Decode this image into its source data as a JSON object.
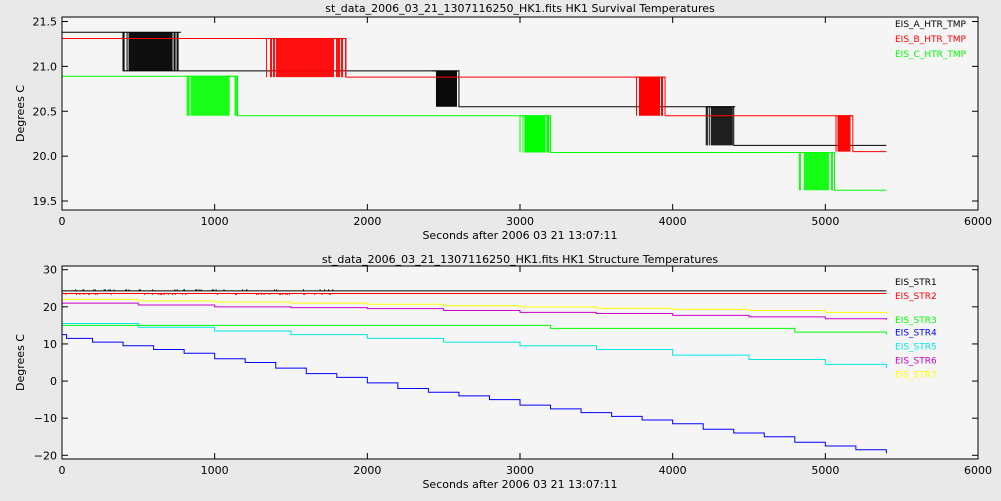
{
  "chart_data": [
    {
      "type": "line",
      "title": "st_data_2006_03_21_1307116250_HK1.fits HK1 Survival Temperatures",
      "xlabel": "Seconds after 2006 03 21 13:07:11",
      "ylabel": "Degrees C",
      "xlim": [
        0,
        6000
      ],
      "ylim": [
        19.4,
        21.55
      ],
      "xticks": [
        0,
        1000,
        2000,
        3000,
        4000,
        5000,
        6000
      ],
      "yticks": [
        19.5,
        20.0,
        20.5,
        21.0,
        21.5
      ],
      "ytick_labels": [
        "19.5",
        "20.0",
        "20.5",
        "21.0",
        "21.5"
      ],
      "legend_position": "top-right",
      "series": [
        {
          "name": "EIS_A_HTR_TMP",
          "color": "#000000",
          "x": [
            0,
            390,
            400,
            800,
            1150,
            2400,
            2600,
            4200,
            4400,
            5400
          ],
          "y": [
            21.38,
            21.38,
            20.95,
            20.95,
            20.95,
            20.95,
            20.55,
            20.55,
            20.12,
            20.12
          ],
          "bursts": [
            {
              "x_start": 400,
              "x_end": 780,
              "y_low": 20.95,
              "y_high": 21.38
            },
            {
              "x_start": 2420,
              "x_end": 2600,
              "y_low": 20.55,
              "y_high": 20.95
            },
            {
              "x_start": 4220,
              "x_end": 4410,
              "y_low": 20.12,
              "y_high": 20.55
            }
          ]
        },
        {
          "name": "EIS_B_HTR_TMP",
          "color": "#ff0000",
          "x": [
            0,
            1340,
            1860,
            3750,
            3950,
            5070,
            5180,
            5400
          ],
          "y": [
            21.31,
            21.31,
            20.88,
            20.88,
            20.45,
            20.45,
            20.05,
            20.05
          ],
          "bursts": [
            {
              "x_start": 1340,
              "x_end": 1860,
              "y_low": 20.88,
              "y_high": 21.31
            },
            {
              "x_start": 3750,
              "x_end": 3950,
              "y_low": 20.45,
              "y_high": 20.88
            },
            {
              "x_start": 5070,
              "x_end": 5180,
              "y_low": 20.05,
              "y_high": 20.45
            }
          ]
        },
        {
          "name": "EIS_C_HTR_TMP",
          "color": "#00ff00",
          "x": [
            0,
            800,
            1150,
            3000,
            3200,
            4830,
            5060,
            5400
          ],
          "y": [
            20.89,
            20.89,
            20.45,
            20.45,
            20.04,
            20.04,
            19.62,
            19.62
          ],
          "bursts": [
            {
              "x_start": 800,
              "x_end": 1150,
              "y_low": 20.45,
              "y_high": 20.89
            },
            {
              "x_start": 3000,
              "x_end": 3190,
              "y_low": 20.04,
              "y_high": 20.45
            },
            {
              "x_start": 4830,
              "x_end": 5060,
              "y_low": 19.62,
              "y_high": 20.04
            }
          ]
        }
      ]
    },
    {
      "type": "line",
      "title": "st_data_2006_03_21_1307116250_HK1.fits HK1 Structure Temperatures",
      "xlabel": "Seconds after 2006 03 21 13:07:11",
      "ylabel": "Degrees C",
      "xlim": [
        0,
        6000
      ],
      "ylim": [
        -21,
        31
      ],
      "xticks": [
        0,
        1000,
        2000,
        3000,
        4000,
        5000,
        6000
      ],
      "yticks": [
        -20,
        -10,
        0,
        10,
        20,
        30
      ],
      "ytick_labels": [
        "−20",
        "−10",
        "0",
        "10",
        "20",
        "30"
      ],
      "legend_position": "right",
      "series": [
        {
          "name": "EIS_STR1",
          "color": "#000000",
          "x": [
            0,
            5400
          ],
          "y": [
            24.3,
            24.3
          ]
        },
        {
          "name": "EIS_STR2",
          "color": "#ff0000",
          "x": [
            0,
            5400
          ],
          "y": [
            23.6,
            23.6
          ]
        },
        {
          "name": "EIS_STR3",
          "color": "#00ff00",
          "x": [
            0,
            2000,
            3200,
            4800,
            5400
          ],
          "y": [
            15.0,
            15.0,
            14.2,
            13.2,
            12.5
          ]
        },
        {
          "name": "EIS_STR4",
          "color": "#0000ff",
          "x": [
            0,
            30,
            200,
            400,
            600,
            800,
            1000,
            1200,
            1400,
            1600,
            1800,
            2000,
            2200,
            2400,
            2600,
            2800,
            3000,
            3200,
            3400,
            3600,
            3800,
            4000,
            4200,
            4400,
            4600,
            4800,
            5000,
            5200,
            5400
          ],
          "y": [
            12.5,
            11.5,
            10.5,
            9.5,
            8.5,
            7.5,
            6.0,
            5.0,
            3.5,
            2.0,
            1.0,
            -0.5,
            -2.0,
            -3.0,
            -4.0,
            -5.0,
            -6.5,
            -7.5,
            -8.5,
            -9.5,
            -10.5,
            -11.5,
            -13.0,
            -14.0,
            -15.0,
            -16.5,
            -17.5,
            -18.5,
            -19.5
          ]
        },
        {
          "name": "EIS_STR5",
          "color": "#00e6e6",
          "x": [
            0,
            500,
            1000,
            1500,
            2000,
            2500,
            3000,
            3500,
            4000,
            4500,
            5000,
            5400
          ],
          "y": [
            15.5,
            14.5,
            13.5,
            12.5,
            11.5,
            10.5,
            9.5,
            8.5,
            7.0,
            5.8,
            4.5,
            3.5
          ]
        },
        {
          "name": "EIS_STR6",
          "color": "#cc00cc",
          "x": [
            0,
            500,
            1000,
            1500,
            2000,
            2500,
            3000,
            3500,
            4000,
            4500,
            5000,
            5400
          ],
          "y": [
            21.0,
            20.5,
            20.0,
            19.8,
            19.5,
            19.0,
            18.5,
            18.2,
            17.7,
            17.3,
            16.8,
            16.5
          ]
        },
        {
          "name": "EIS_STR7",
          "color": "#ffff00",
          "x": [
            0,
            500,
            1000,
            1500,
            2000,
            2500,
            3000,
            3500,
            4000,
            4500,
            5000,
            5400
          ],
          "y": [
            22.0,
            21.6,
            21.3,
            21.0,
            20.7,
            20.3,
            20.0,
            19.6,
            19.3,
            19.0,
            18.5,
            18.0
          ]
        }
      ]
    }
  ]
}
